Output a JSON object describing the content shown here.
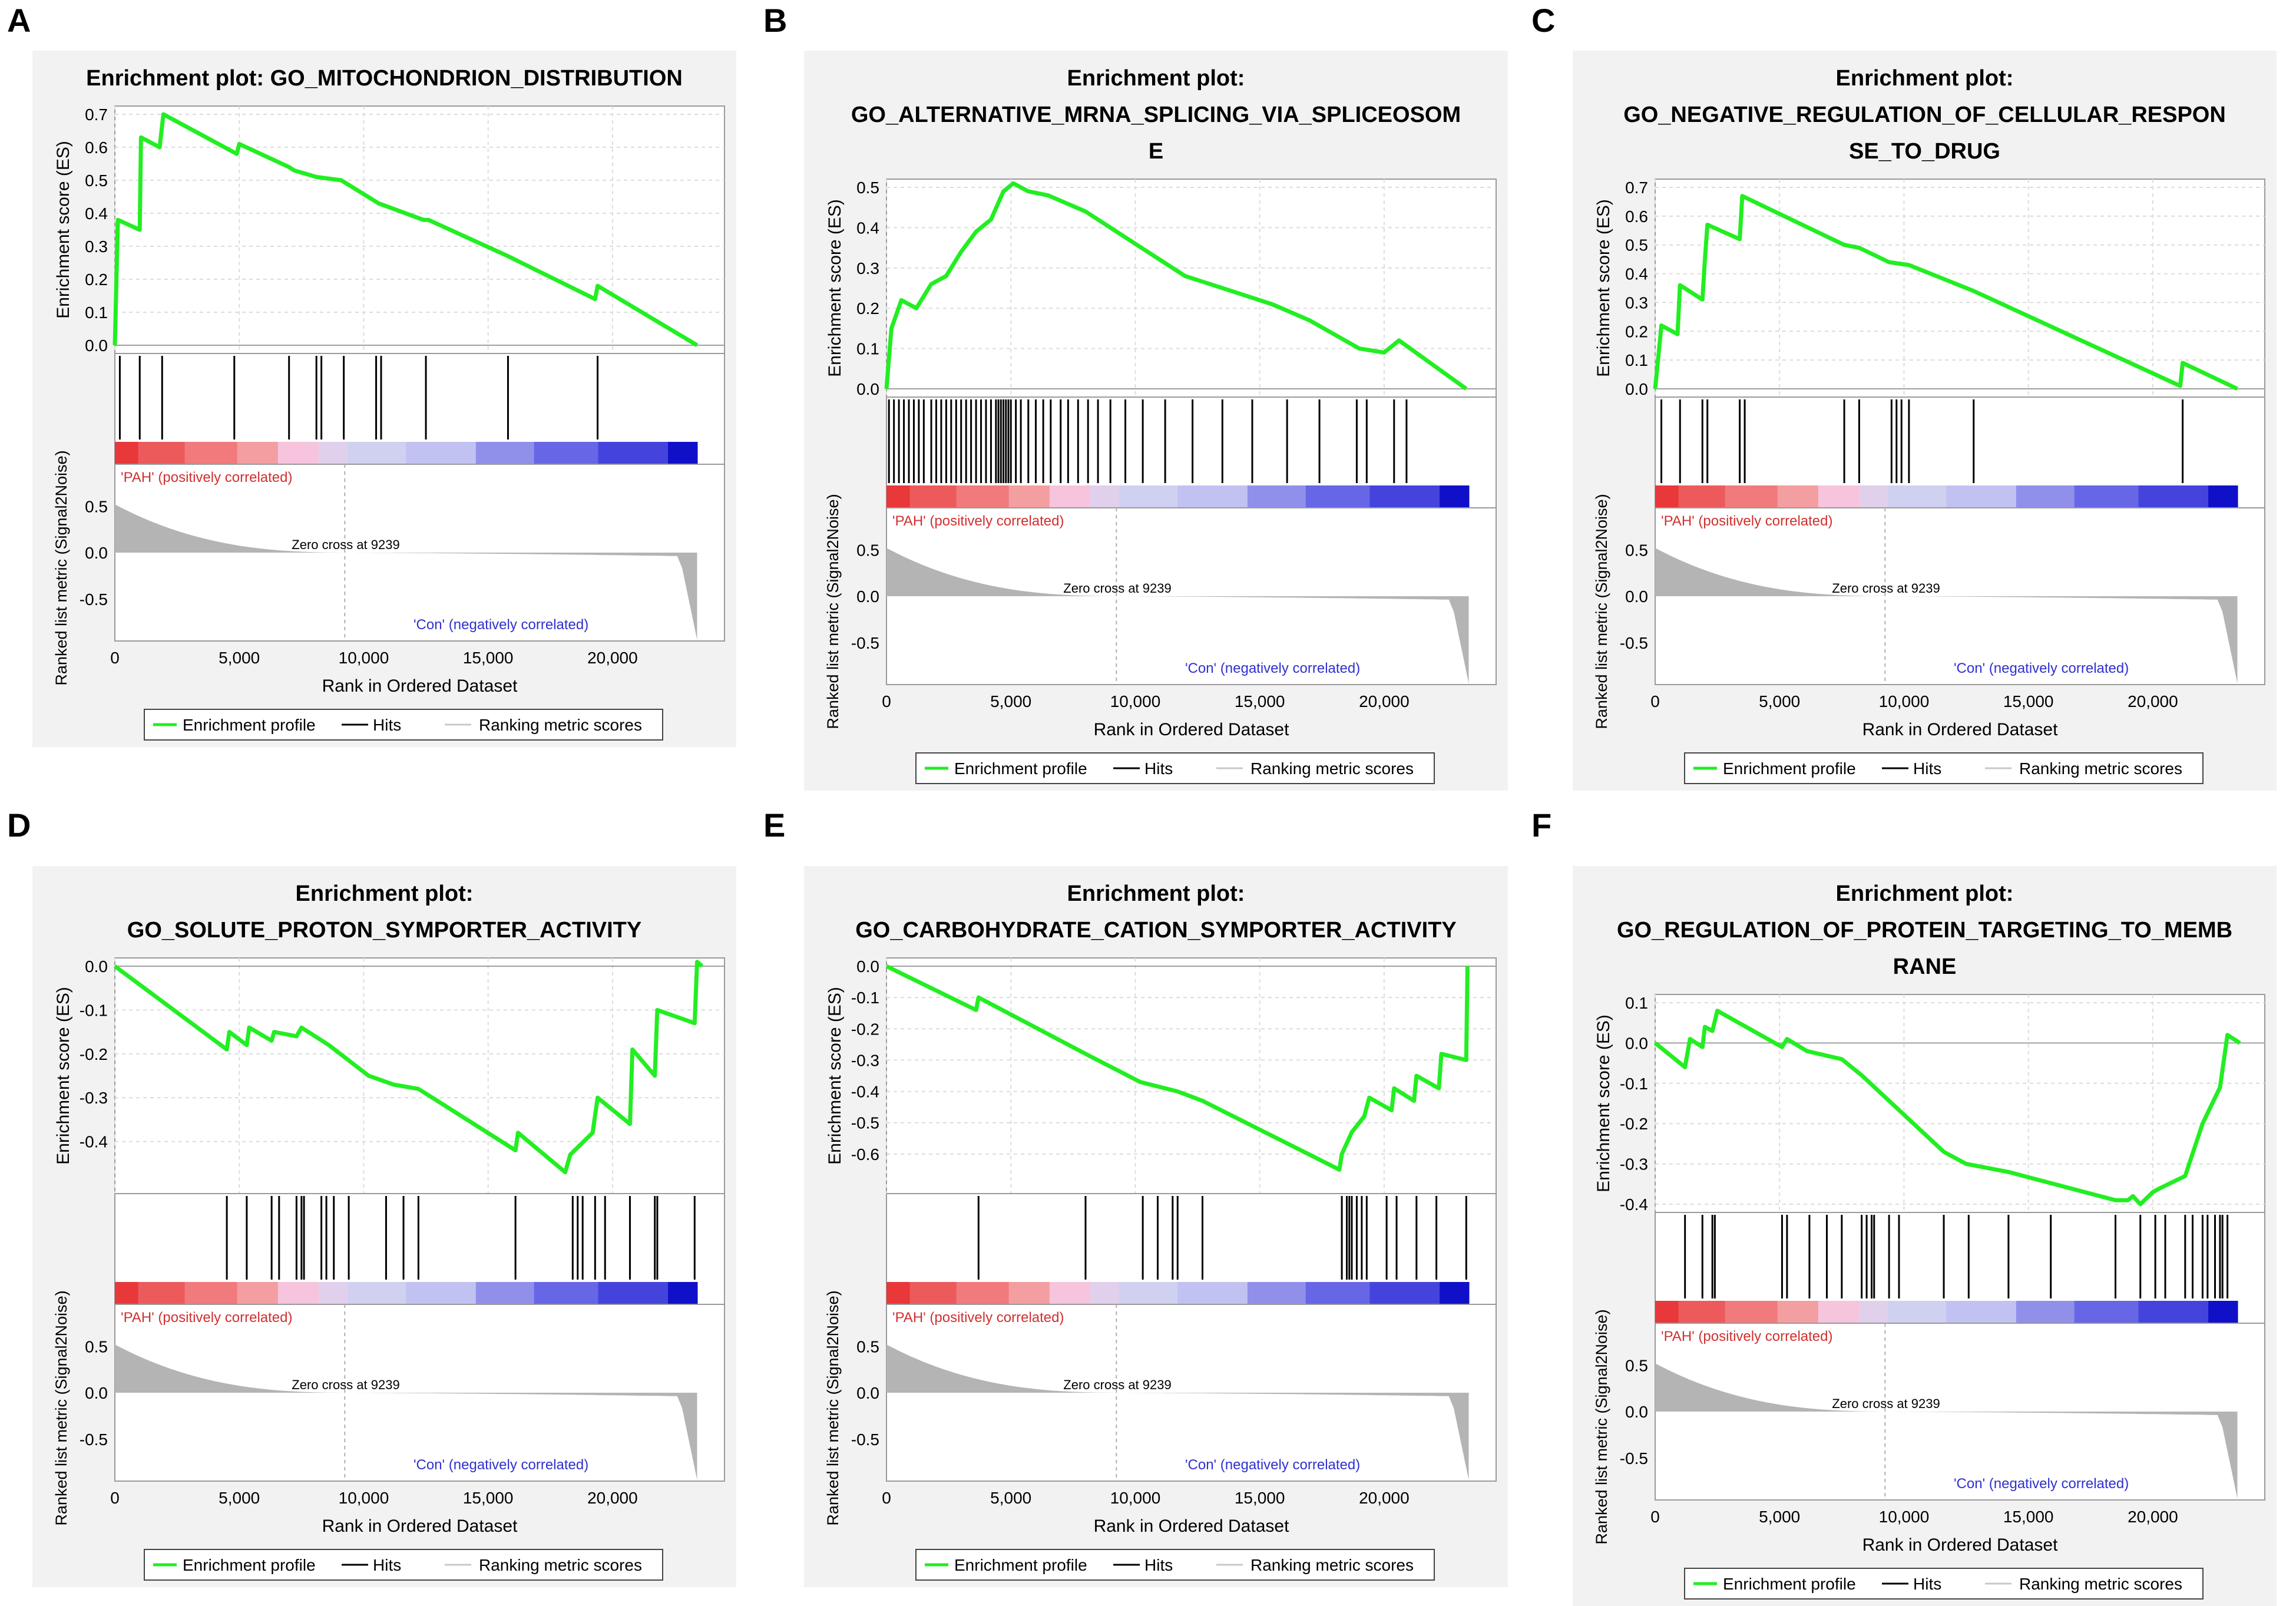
{
  "legend_labels": {
    "profile": "Enrichment profile",
    "hits": "Hits",
    "ranking": "Ranking metric scores"
  },
  "pos_label": "'PAH' (positively correlated)",
  "neg_label": "'Con' (negatively correlated)",
  "zero_cross": "Zero cross at 9239",
  "es_axis_label": "Enrichment score (ES)",
  "rank_axis_label": "Ranked list metric (Signal2Noise)",
  "x_axis_label": "Rank in Ordered Dataset",
  "x_ticks": [
    "0",
    "5,000",
    "10,000",
    "15,000",
    "20,000"
  ],
  "metric_ticks": [
    "0.5",
    "0.0",
    "-0.5"
  ],
  "colors": {
    "profile": "#22ee22",
    "hit": "#000000",
    "metric": "#b4b4b4",
    "panel_bg": "#f2f2f2",
    "pos": "#e03030",
    "neg": "#3030e0"
  },
  "chart_data": [
    {
      "type": "line",
      "letter": "A",
      "title_lines": [
        "Enrichment plot: GO_MITOCHONDRION_DISTRIBUTION"
      ],
      "ylim": [
        0,
        0.7
      ],
      "yticks": [
        "0.7",
        "0.6",
        "0.5",
        "0.4",
        "0.3",
        "0.2",
        "0.1",
        "0.0"
      ],
      "es_points": [
        [
          0,
          0
        ],
        [
          120,
          0.38
        ],
        [
          1000,
          0.35
        ],
        [
          1050,
          0.63
        ],
        [
          1800,
          0.6
        ],
        [
          1950,
          0.7
        ],
        [
          4900,
          0.58
        ],
        [
          5000,
          0.61
        ],
        [
          7000,
          0.54
        ],
        [
          7200,
          0.53
        ],
        [
          8100,
          0.51
        ],
        [
          9100,
          0.5
        ],
        [
          10600,
          0.43
        ],
        [
          12400,
          0.38
        ],
        [
          12600,
          0.38
        ],
        [
          15800,
          0.27
        ],
        [
          19300,
          0.14
        ],
        [
          19400,
          0.18
        ],
        [
          23400,
          0
        ]
      ],
      "hits": [
        200,
        1000,
        1900,
        4800,
        7000,
        8100,
        8300,
        9200,
        10500,
        10700,
        12500,
        15800,
        19400
      ]
    },
    {
      "type": "line",
      "letter": "B",
      "title_lines": [
        "Enrichment plot:",
        "GO_ALTERNATIVE_MRNA_SPLICING_VIA_SPLICEOSOM",
        "E"
      ],
      "ylim": [
        0,
        0.5
      ],
      "yticks": [
        "0.5",
        "0.4",
        "0.3",
        "0.2",
        "0.1",
        "0.0"
      ],
      "es_points": [
        [
          0,
          0
        ],
        [
          200,
          0.15
        ],
        [
          600,
          0.22
        ],
        [
          1200,
          0.2
        ],
        [
          1800,
          0.26
        ],
        [
          2400,
          0.28
        ],
        [
          3000,
          0.34
        ],
        [
          3600,
          0.39
        ],
        [
          4200,
          0.42
        ],
        [
          4700,
          0.49
        ],
        [
          5100,
          0.51
        ],
        [
          5700,
          0.49
        ],
        [
          6500,
          0.48
        ],
        [
          8000,
          0.44
        ],
        [
          10000,
          0.36
        ],
        [
          12000,
          0.28
        ],
        [
          14000,
          0.24
        ],
        [
          15500,
          0.21
        ],
        [
          17000,
          0.17
        ],
        [
          19000,
          0.1
        ],
        [
          20000,
          0.09
        ],
        [
          20600,
          0.12
        ],
        [
          23300,
          0
        ]
      ],
      "hits": [
        100,
        300,
        500,
        700,
        900,
        1100,
        1300,
        1500,
        1800,
        2000,
        2200,
        2400,
        2600,
        2800,
        3000,
        3200,
        3400,
        3600,
        3800,
        4000,
        4200,
        4400,
        4500,
        4600,
        4700,
        4800,
        4900,
        5000,
        5200,
        5400,
        5700,
        6000,
        6300,
        6600,
        7000,
        7300,
        7700,
        8100,
        8500,
        9000,
        9600,
        10300,
        11200,
        12300,
        13500,
        14700,
        16100,
        17400,
        18900,
        19300,
        20400,
        20900
      ]
    },
    {
      "type": "line",
      "letter": "C",
      "title_lines": [
        "Enrichment plot:",
        "GO_NEGATIVE_REGULATION_OF_CELLULAR_RESPON",
        "SE_TO_DRUG"
      ],
      "ylim": [
        0,
        0.7
      ],
      "yticks": [
        "0.7",
        "0.6",
        "0.5",
        "0.4",
        "0.3",
        "0.2",
        "0.1",
        "0.0"
      ],
      "es_points": [
        [
          0,
          0
        ],
        [
          250,
          0.22
        ],
        [
          900,
          0.19
        ],
        [
          1000,
          0.36
        ],
        [
          1900,
          0.31
        ],
        [
          2000,
          0.45
        ],
        [
          2100,
          0.57
        ],
        [
          3400,
          0.52
        ],
        [
          3500,
          0.67
        ],
        [
          7600,
          0.5
        ],
        [
          8200,
          0.49
        ],
        [
          9400,
          0.44
        ],
        [
          10200,
          0.43
        ],
        [
          12800,
          0.34
        ],
        [
          21100,
          0.01
        ],
        [
          21200,
          0.09
        ],
        [
          23400,
          0
        ]
      ],
      "hits": [
        250,
        1000,
        1900,
        2100,
        3400,
        3600,
        7600,
        8200,
        9500,
        9700,
        9900,
        10200,
        12800,
        21200
      ]
    },
    {
      "type": "line",
      "letter": "D",
      "title_lines": [
        "Enrichment plot:",
        "GO_SOLUTE_PROTON_SYMPORTER_ACTIVITY"
      ],
      "ylim": [
        -0.5,
        0
      ],
      "yticks": [
        "0.0",
        "-0.1",
        "-0.2",
        "-0.3",
        "-0.4"
      ],
      "es_points": [
        [
          0,
          0
        ],
        [
          4500,
          -0.19
        ],
        [
          4600,
          -0.15
        ],
        [
          5300,
          -0.18
        ],
        [
          5400,
          -0.14
        ],
        [
          6300,
          -0.17
        ],
        [
          6400,
          -0.15
        ],
        [
          7300,
          -0.16
        ],
        [
          7500,
          -0.14
        ],
        [
          8600,
          -0.18
        ],
        [
          10200,
          -0.25
        ],
        [
          11200,
          -0.27
        ],
        [
          12200,
          -0.28
        ],
        [
          16100,
          -0.42
        ],
        [
          16200,
          -0.38
        ],
        [
          18100,
          -0.47
        ],
        [
          18300,
          -0.43
        ],
        [
          19200,
          -0.38
        ],
        [
          19400,
          -0.3
        ],
        [
          20700,
          -0.36
        ],
        [
          20800,
          -0.19
        ],
        [
          21700,
          -0.25
        ],
        [
          21800,
          -0.1
        ],
        [
          23300,
          -0.13
        ],
        [
          23400,
          0.01
        ],
        [
          23600,
          0
        ]
      ],
      "hits": [
        4500,
        5300,
        6300,
        6600,
        7300,
        7500,
        7600,
        8300,
        8500,
        8800,
        9400,
        10900,
        11600,
        12200,
        16100,
        18400,
        18600,
        18800,
        19300,
        19700,
        20700,
        21700,
        21800,
        23300
      ]
    },
    {
      "type": "line",
      "letter": "E",
      "title_lines": [
        "Enrichment plot:",
        "GO_CARBOHYDRATE_CATION_SYMPORTER_ACTIVITY"
      ],
      "ylim": [
        -0.7,
        0
      ],
      "yticks": [
        "0.0",
        "-0.1",
        "-0.2",
        "-0.3",
        "-0.4",
        "-0.5",
        "-0.6"
      ],
      "es_points": [
        [
          0,
          0
        ],
        [
          3600,
          -0.14
        ],
        [
          3700,
          -0.1
        ],
        [
          8000,
          -0.28
        ],
        [
          10200,
          -0.37
        ],
        [
          11700,
          -0.4
        ],
        [
          12700,
          -0.43
        ],
        [
          18200,
          -0.65
        ],
        [
          18300,
          -0.6
        ],
        [
          18700,
          -0.53
        ],
        [
          19200,
          -0.48
        ],
        [
          19400,
          -0.42
        ],
        [
          20300,
          -0.46
        ],
        [
          20400,
          -0.39
        ],
        [
          21200,
          -0.43
        ],
        [
          21300,
          -0.35
        ],
        [
          22200,
          -0.39
        ],
        [
          22300,
          -0.28
        ],
        [
          23300,
          -0.3
        ],
        [
          23350,
          0
        ]
      ],
      "hits": [
        3700,
        8000,
        10300,
        10900,
        11500,
        11700,
        12700,
        18300,
        18500,
        18600,
        18700,
        18900,
        19100,
        19300,
        20100,
        20500,
        21300,
        22100,
        23300
      ]
    },
    {
      "type": "line",
      "letter": "F",
      "title_lines": [
        "Enrichment plot:",
        "GO_REGULATION_OF_PROTEIN_TARGETING_TO_MEMB",
        "RANE"
      ],
      "ylim": [
        -0.4,
        0.1
      ],
      "yticks": [
        "0.1",
        "0.0",
        "-0.1",
        "-0.2",
        "-0.3",
        "-0.4"
      ],
      "es_points": [
        [
          0,
          0
        ],
        [
          1200,
          -0.06
        ],
        [
          1400,
          0.01
        ],
        [
          1900,
          -0.01
        ],
        [
          2000,
          0.04
        ],
        [
          2300,
          0.03
        ],
        [
          2500,
          0.08
        ],
        [
          5100,
          -0.01
        ],
        [
          5300,
          0.01
        ],
        [
          6100,
          -0.02
        ],
        [
          7500,
          -0.04
        ],
        [
          8300,
          -0.08
        ],
        [
          11600,
          -0.27
        ],
        [
          12500,
          -0.3
        ],
        [
          14200,
          -0.32
        ],
        [
          18500,
          -0.39
        ],
        [
          19000,
          -0.39
        ],
        [
          19200,
          -0.38
        ],
        [
          19500,
          -0.4
        ],
        [
          20000,
          -0.37
        ],
        [
          20300,
          -0.36
        ],
        [
          21300,
          -0.33
        ],
        [
          22000,
          -0.2
        ],
        [
          22700,
          -0.11
        ],
        [
          23000,
          0.02
        ],
        [
          23500,
          0
        ]
      ],
      "hits": [
        1200,
        1900,
        2300,
        2400,
        5100,
        5300,
        6200,
        6900,
        7500,
        8300,
        8500,
        8700,
        8800,
        9400,
        9800,
        11600,
        12600,
        14200,
        15900,
        18500,
        19500,
        20100,
        20500,
        21300,
        21600,
        22000,
        22200,
        22500,
        22700,
        22800,
        23000
      ]
    }
  ]
}
